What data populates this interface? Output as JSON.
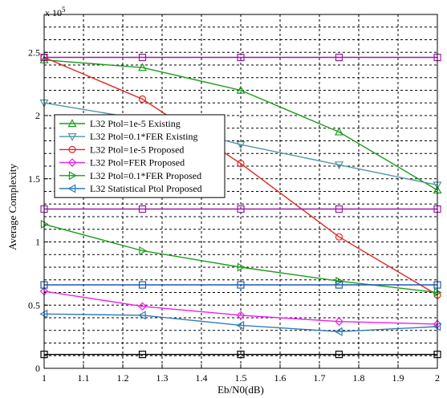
{
  "chart_data": {
    "type": "line",
    "title": "",
    "xlabel": "Eb/N0(dB)",
    "ylabel": "Average Complexity",
    "exponent_label": "x 10",
    "exponent_power": "5",
    "xlim": [
      1,
      2
    ],
    "ylim": [
      0,
      2.8
    ],
    "x_ticks": [
      "1",
      "1.1",
      "1.2",
      "1.3",
      "1.4",
      "1.5",
      "1.6",
      "1.7",
      "1.8",
      "1.9",
      "2"
    ],
    "y_ticks": [
      "0",
      "0.5",
      "1",
      "1.5",
      "2",
      "2.5"
    ],
    "grid": true,
    "legend_position": "left",
    "x": [
      1,
      1.25,
      1.5,
      1.75,
      2
    ],
    "series": [
      {
        "name": "L32 Ptol=1e-5 Existing",
        "color": "#1a9e1a",
        "marker": "triangle-up",
        "values": [
          2.44,
          2.38,
          2.2,
          1.87,
          1.41
        ],
        "legend": true
      },
      {
        "name": "L32 Ptol=0.1*FER Existing",
        "color": "#4f97a3",
        "marker": "triangle-down",
        "values": [
          2.1,
          1.97,
          1.77,
          1.61,
          1.45
        ],
        "legend": true
      },
      {
        "name": "L32 Ptol=1e-5 Proposed",
        "color": "#e0261f",
        "marker": "circle",
        "values": [
          2.46,
          2.13,
          1.62,
          1.04,
          0.58
        ],
        "legend": true
      },
      {
        "name": "L32 Ptol=FER Proposed",
        "color": "#ee1fee",
        "marker": "diamond",
        "values": [
          0.61,
          0.49,
          0.42,
          0.37,
          0.35
        ],
        "legend": true
      },
      {
        "name": "L32 Ptol=0.1*FER Proposed",
        "color": "#1a9e1a",
        "marker": "triangle-right",
        "values": [
          1.14,
          0.93,
          0.8,
          0.69,
          0.6
        ],
        "legend": true
      },
      {
        "name": "L32 Statistical Ptol Proposed",
        "color": "#2e7db8",
        "marker": "triangle-left",
        "values": [
          0.43,
          0.42,
          0.34,
          0.29,
          0.33
        ],
        "legend": true
      },
      {
        "name": "",
        "color": "#9b1aa6",
        "marker": "square",
        "values": [
          2.46,
          2.46,
          2.46,
          2.46,
          2.46
        ],
        "legend": false
      },
      {
        "name": "",
        "color": "#9b1aa6",
        "marker": "square",
        "values": [
          1.26,
          1.26,
          1.26,
          1.26,
          1.26
        ],
        "legend": false
      },
      {
        "name": "",
        "color": "#1f58b3",
        "marker": "square",
        "values": [
          0.66,
          0.66,
          0.66,
          0.66,
          0.66
        ],
        "legend": false
      },
      {
        "name": "",
        "color": "#000000",
        "marker": "square",
        "values": [
          0.11,
          0.11,
          0.11,
          0.11,
          0.11
        ],
        "legend": false
      }
    ]
  }
}
